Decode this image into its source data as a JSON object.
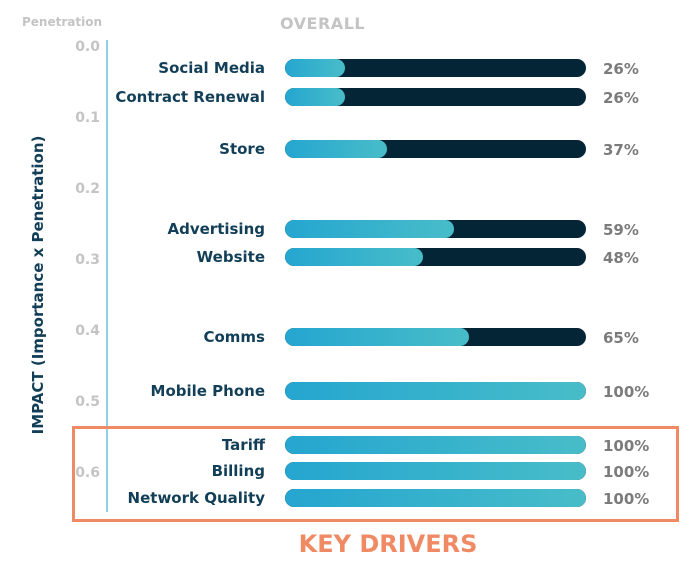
{
  "chart_data": {
    "type": "bar",
    "title": "OVERALL",
    "corner_label": "Penetration",
    "ylabel": "IMPACT (Importance x Penetration)",
    "ylim": [
      0.0,
      0.65
    ],
    "yticks": [
      "0.0",
      "0.1",
      "0.2",
      "0.3",
      "0.4",
      "0.5",
      "0.6"
    ],
    "highlight_label": "KEY DRIVERS",
    "highlight_color": "#f08a64",
    "items": [
      {
        "label": "Social Media",
        "value_label": "26%",
        "value": 26,
        "fill": 0.2,
        "impact": 0.03
      },
      {
        "label": "Contract Renewal",
        "value_label": "26%",
        "value": 26,
        "fill": 0.2,
        "impact": 0.07
      },
      {
        "label": "Store",
        "value_label": "37%",
        "value": 37,
        "fill": 0.34,
        "impact": 0.144
      },
      {
        "label": "Advertising",
        "value_label": "59%",
        "value": 59,
        "fill": 0.56,
        "impact": 0.256
      },
      {
        "label": "Website",
        "value_label": "48%",
        "value": 48,
        "fill": 0.46,
        "impact": 0.296
      },
      {
        "label": "Comms",
        "value_label": "65%",
        "value": 65,
        "fill": 0.61,
        "impact": 0.408
      },
      {
        "label": "Mobile Phone",
        "value_label": "100%",
        "value": 100,
        "fill": 1.0,
        "impact": 0.485
      },
      {
        "label": "Tariff",
        "value_label": "100%",
        "value": 100,
        "fill": 1.0,
        "impact": 0.56
      },
      {
        "label": "Billing",
        "value_label": "100%",
        "value": 100,
        "fill": 1.0,
        "impact": 0.597
      },
      {
        "label": "Network Quality",
        "value_label": "100%",
        "value": 100,
        "fill": 1.0,
        "impact": 0.635
      }
    ]
  }
}
